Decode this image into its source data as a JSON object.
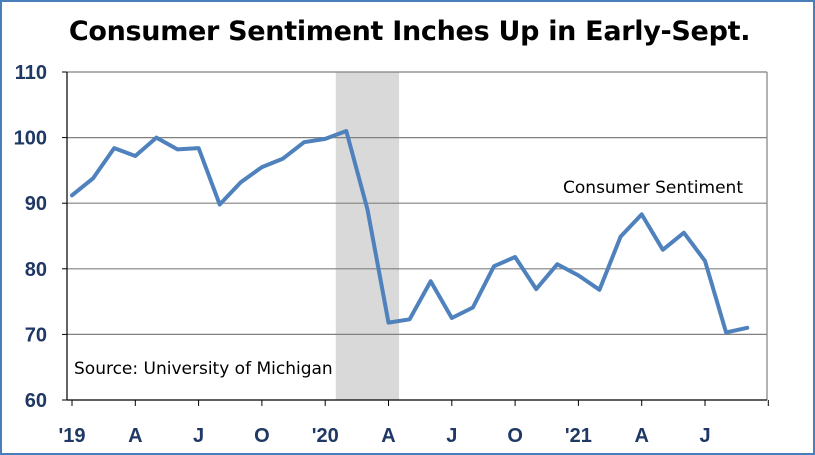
{
  "chart_data": {
    "type": "line",
    "title": "Consumer Sentiment Inches Up in Early-Sept.",
    "source": "Source: University of Michigan",
    "series": [
      {
        "name": "Consumer Sentiment",
        "color": "#4f81bd",
        "x": [
          "2019-01",
          "2019-02",
          "2019-03",
          "2019-04",
          "2019-05",
          "2019-06",
          "2019-07",
          "2019-08",
          "2019-09",
          "2019-10",
          "2019-11",
          "2019-12",
          "2020-01",
          "2020-02",
          "2020-03",
          "2020-04",
          "2020-05",
          "2020-06",
          "2020-07",
          "2020-08",
          "2020-09",
          "2020-10",
          "2020-11",
          "2020-12",
          "2021-01",
          "2021-02",
          "2021-03",
          "2021-04",
          "2021-05",
          "2021-06",
          "2021-07",
          "2021-08",
          "2021-09"
        ],
        "values": [
          91.2,
          93.8,
          98.4,
          97.2,
          100.0,
          98.2,
          98.4,
          89.8,
          93.2,
          95.5,
          96.8,
          99.3,
          99.8,
          101.0,
          89.1,
          71.8,
          72.3,
          78.1,
          72.5,
          74.1,
          80.4,
          81.8,
          76.9,
          80.7,
          79.0,
          76.8,
          84.9,
          88.3,
          82.9,
          85.5,
          81.2,
          70.3,
          71.0
        ]
      }
    ],
    "recession_shading": {
      "start": "2020-02",
      "end": "2020-04",
      "color": "#d9d9d9"
    },
    "y_axis": {
      "ylim": [
        60,
        110
      ],
      "ticks": [
        "60",
        "70",
        "80",
        "90",
        "100",
        "110"
      ],
      "gridlines": true
    },
    "x_axis": {
      "ticks": [
        {
          "label": "'19",
          "month": "2019-01"
        },
        {
          "label": "A",
          "month": "2019-04"
        },
        {
          "label": "J",
          "month": "2019-07"
        },
        {
          "label": "O",
          "month": "2019-10"
        },
        {
          "label": "'20",
          "month": "2020-01"
        },
        {
          "label": "A",
          "month": "2020-04"
        },
        {
          "label": "J",
          "month": "2020-07"
        },
        {
          "label": "O",
          "month": "2020-10"
        },
        {
          "label": "'21",
          "month": "2021-01"
        },
        {
          "label": "A",
          "month": "2021-04"
        },
        {
          "label": "J",
          "month": "2021-07"
        }
      ]
    },
    "legend": "inline label, upper right of plot",
    "source_placement": "lower left inside plot"
  }
}
